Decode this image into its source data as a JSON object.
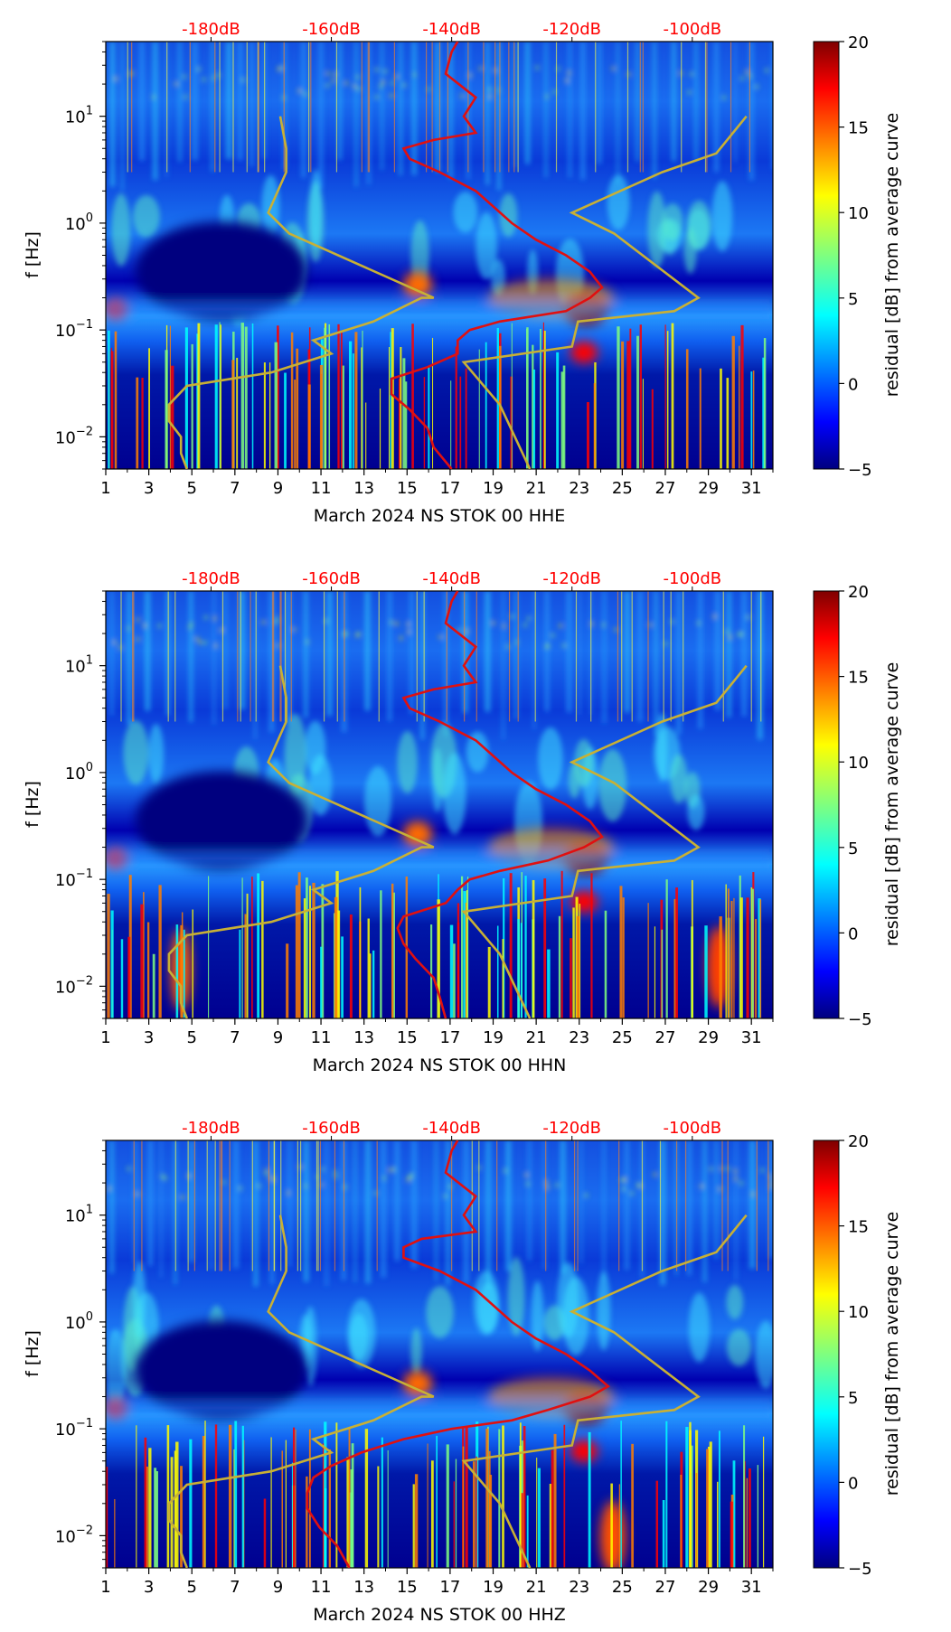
{
  "figure": {
    "colors": {
      "noise_model_line": "#c8b035",
      "average_line": "#e01010",
      "top_axis_text": "#ff0000",
      "colormap": [
        "#00007f",
        "#0000ff",
        "#007fff",
        "#00ffff",
        "#7fff7f",
        "#ffff00",
        "#ff7f00",
        "#ff0000",
        "#7f0000"
      ]
    }
  },
  "chart_data": [
    {
      "type": "heatmap",
      "title": "",
      "xlabel": "March 2024 NS STOK 00 HHE",
      "ylabel": "f [Hz]",
      "x_ticks": [
        "1",
        "3",
        "5",
        "7",
        "9",
        "11",
        "13",
        "15",
        "17",
        "19",
        "21",
        "23",
        "25",
        "27",
        "29",
        "31"
      ],
      "xlim": [
        1,
        32
      ],
      "y_ticks": [
        "10^1",
        "10^0",
        "10^-1",
        "10^-2"
      ],
      "y_tick_base": "10",
      "y_tick_exponents": [
        "1",
        "0",
        "−1",
        "−2"
      ],
      "ylim": [
        0.005,
        50
      ],
      "top_axis_labels": [
        "-180dB",
        "-160dB",
        "-140dB",
        "-120dB",
        "-100dB"
      ],
      "colorbar": {
        "label": "residual [dB] from average curve",
        "ticks": [
          "20",
          "15",
          "10",
          "5",
          "0",
          "−5"
        ],
        "range": [
          -5,
          20
        ]
      },
      "series": [
        {
          "name": "average curve (dB)",
          "color": "#e01010",
          "points": [
            [
              50,
              -139
            ],
            [
              40,
              -140
            ],
            [
              25,
              -141
            ],
            [
              15,
              -136
            ],
            [
              10,
              -138
            ],
            [
              7,
              -136
            ],
            [
              6,
              -143
            ],
            [
              5,
              -148
            ],
            [
              4,
              -147
            ],
            [
              3,
              -142
            ],
            [
              2,
              -136
            ],
            [
              1,
              -130
            ],
            [
              0.7,
              -126
            ],
            [
              0.5,
              -121
            ],
            [
              0.35,
              -117
            ],
            [
              0.25,
              -115
            ],
            [
              0.2,
              -117
            ],
            [
              0.15,
              -121
            ],
            [
              0.12,
              -132
            ],
            [
              0.1,
              -137
            ],
            [
              0.08,
              -139
            ],
            [
              0.06,
              -139
            ],
            [
              0.045,
              -144
            ],
            [
              0.035,
              -150
            ],
            [
              0.025,
              -150
            ],
            [
              0.018,
              -147
            ],
            [
              0.012,
              -144
            ],
            [
              0.008,
              -143
            ],
            [
              0.005,
              -140
            ]
          ]
        },
        {
          "name": "noise model (dB)",
          "color": "#c8b035",
          "points": [
            [
              10,
              -168.5
            ],
            [
              5,
              -167.5
            ],
            [
              3,
              -167.5
            ],
            [
              1.25,
              -170.5
            ],
            [
              0.8,
              -167
            ],
            [
              0.2,
              -143
            ],
            [
              0.2,
              -145
            ],
            [
              0.12,
              -153
            ],
            [
              0.08,
              -163
            ],
            [
              0.06,
              -160
            ],
            [
              0.04,
              -170
            ],
            [
              0.03,
              -184
            ],
            [
              0.02,
              -187
            ],
            [
              0.014,
              -187
            ],
            [
              0.01,
              -185
            ],
            [
              0.007,
              -185
            ],
            [
              0.005,
              -184
            ]
          ]
        },
        {
          "name": "noise model high (dB)",
          "color": "#c8b035",
          "points": [
            [
              10,
              -91
            ],
            [
              4.5,
              -96
            ],
            [
              3,
              -105
            ],
            [
              1.25,
              -120
            ],
            [
              0.8,
              -113
            ],
            [
              0.2,
              -99
            ],
            [
              0.15,
              -103
            ],
            [
              0.12,
              -119
            ],
            [
              0.07,
              -120
            ],
            [
              0.05,
              -138
            ],
            [
              0.02,
              -132
            ],
            [
              0.005,
              -127
            ]
          ]
        }
      ]
    },
    {
      "type": "heatmap",
      "title": "",
      "xlabel": "March 2024 NS STOK 00 HHN",
      "ylabel": "f [Hz]",
      "x_ticks": [
        "1",
        "3",
        "5",
        "7",
        "9",
        "11",
        "13",
        "15",
        "17",
        "19",
        "21",
        "23",
        "25",
        "27",
        "29",
        "31"
      ],
      "xlim": [
        1,
        32
      ],
      "y_ticks": [
        "10^1",
        "10^0",
        "10^-1",
        "10^-2"
      ],
      "y_tick_base": "10",
      "y_tick_exponents": [
        "1",
        "0",
        "−1",
        "−2"
      ],
      "ylim": [
        0.005,
        50
      ],
      "top_axis_labels": [
        "-180dB",
        "-160dB",
        "-140dB",
        "-120dB",
        "-100dB"
      ],
      "colorbar": {
        "label": "residual [dB] from average curve",
        "ticks": [
          "20",
          "15",
          "10",
          "5",
          "0",
          "−5"
        ],
        "range": [
          -5,
          20
        ]
      },
      "series": [
        {
          "name": "average curve (dB)",
          "color": "#e01010",
          "points": [
            [
              50,
              -139
            ],
            [
              40,
              -140
            ],
            [
              25,
              -141
            ],
            [
              15,
              -136
            ],
            [
              10,
              -138
            ],
            [
              7,
              -136
            ],
            [
              6,
              -143
            ],
            [
              5,
              -148
            ],
            [
              4,
              -147
            ],
            [
              3,
              -142
            ],
            [
              2,
              -136
            ],
            [
              1,
              -130
            ],
            [
              0.7,
              -126
            ],
            [
              0.5,
              -121
            ],
            [
              0.35,
              -117
            ],
            [
              0.25,
              -115
            ],
            [
              0.2,
              -118
            ],
            [
              0.15,
              -124
            ],
            [
              0.12,
              -132
            ],
            [
              0.1,
              -137
            ],
            [
              0.08,
              -139
            ],
            [
              0.06,
              -141
            ],
            [
              0.045,
              -148
            ],
            [
              0.035,
              -149
            ],
            [
              0.025,
              -148
            ],
            [
              0.018,
              -146
            ],
            [
              0.012,
              -143
            ],
            [
              0.008,
              -142
            ],
            [
              0.005,
              -141
            ]
          ]
        },
        {
          "name": "noise model (dB)",
          "color": "#c8b035",
          "points": [
            [
              10,
              -168.5
            ],
            [
              5,
              -167.5
            ],
            [
              3,
              -167.5
            ],
            [
              1.25,
              -170.5
            ],
            [
              0.8,
              -167
            ],
            [
              0.2,
              -143
            ],
            [
              0.2,
              -145
            ],
            [
              0.12,
              -153
            ],
            [
              0.08,
              -163
            ],
            [
              0.06,
              -160
            ],
            [
              0.04,
              -170
            ],
            [
              0.03,
              -184
            ],
            [
              0.02,
              -187
            ],
            [
              0.014,
              -187
            ],
            [
              0.01,
              -185
            ],
            [
              0.007,
              -185
            ],
            [
              0.005,
              -184
            ]
          ]
        },
        {
          "name": "noise model high (dB)",
          "color": "#c8b035",
          "points": [
            [
              10,
              -91
            ],
            [
              4.5,
              -96
            ],
            [
              3,
              -105
            ],
            [
              1.25,
              -120
            ],
            [
              0.8,
              -113
            ],
            [
              0.2,
              -99
            ],
            [
              0.15,
              -103
            ],
            [
              0.12,
              -119
            ],
            [
              0.07,
              -120
            ],
            [
              0.05,
              -138
            ],
            [
              0.02,
              -132
            ],
            [
              0.005,
              -127
            ]
          ]
        }
      ]
    },
    {
      "type": "heatmap",
      "title": "",
      "xlabel": "March 2024 NS STOK 00 HHZ",
      "ylabel": "f [Hz]",
      "x_ticks": [
        "1",
        "3",
        "5",
        "7",
        "9",
        "11",
        "13",
        "15",
        "17",
        "19",
        "21",
        "23",
        "25",
        "27",
        "29",
        "31"
      ],
      "xlim": [
        1,
        32
      ],
      "y_ticks": [
        "10^1",
        "10^0",
        "10^-1",
        "10^-2"
      ],
      "y_tick_base": "10",
      "y_tick_exponents": [
        "1",
        "0",
        "−1",
        "−2"
      ],
      "ylim": [
        0.005,
        50
      ],
      "top_axis_labels": [
        "-180dB",
        "-160dB",
        "-140dB",
        "-120dB",
        "-100dB"
      ],
      "colorbar": {
        "label": "residual [dB] from average curve",
        "ticks": [
          "20",
          "15",
          "10",
          "5",
          "0",
          "−5"
        ],
        "range": [
          -5,
          20
        ]
      },
      "series": [
        {
          "name": "average curve (dB)",
          "color": "#e01010",
          "points": [
            [
              50,
              -139
            ],
            [
              40,
              -140
            ],
            [
              25,
              -141
            ],
            [
              15,
              -136
            ],
            [
              10,
              -138
            ],
            [
              7,
              -136
            ],
            [
              6,
              -145
            ],
            [
              5,
              -148
            ],
            [
              4,
              -148
            ],
            [
              3,
              -142
            ],
            [
              2,
              -136
            ],
            [
              1,
              -130
            ],
            [
              0.7,
              -126
            ],
            [
              0.5,
              -121
            ],
            [
              0.35,
              -117
            ],
            [
              0.25,
              -114
            ],
            [
              0.2,
              -117
            ],
            [
              0.15,
              -124
            ],
            [
              0.12,
              -130
            ],
            [
              0.1,
              -140
            ],
            [
              0.08,
              -148
            ],
            [
              0.06,
              -155
            ],
            [
              0.045,
              -160
            ],
            [
              0.035,
              -163
            ],
            [
              0.025,
              -164
            ],
            [
              0.018,
              -164
            ],
            [
              0.012,
              -162
            ],
            [
              0.008,
              -159
            ],
            [
              0.005,
              -157
            ]
          ]
        },
        {
          "name": "noise model (dB)",
          "color": "#c8b035",
          "points": [
            [
              10,
              -168.5
            ],
            [
              5,
              -167.5
            ],
            [
              3,
              -167.5
            ],
            [
              1.25,
              -170.5
            ],
            [
              0.8,
              -167
            ],
            [
              0.2,
              -143
            ],
            [
              0.2,
              -145
            ],
            [
              0.12,
              -153
            ],
            [
              0.08,
              -163
            ],
            [
              0.06,
              -160
            ],
            [
              0.04,
              -170
            ],
            [
              0.03,
              -184
            ],
            [
              0.02,
              -187
            ],
            [
              0.014,
              -187
            ],
            [
              0.01,
              -185
            ],
            [
              0.007,
              -185
            ],
            [
              0.005,
              -184
            ]
          ]
        },
        {
          "name": "noise model high (dB)",
          "color": "#c8b035",
          "points": [
            [
              10,
              -91
            ],
            [
              4.5,
              -96
            ],
            [
              3,
              -105
            ],
            [
              1.25,
              -120
            ],
            [
              0.8,
              -113
            ],
            [
              0.2,
              -99
            ],
            [
              0.15,
              -103
            ],
            [
              0.12,
              -119
            ],
            [
              0.07,
              -120
            ],
            [
              0.05,
              -138
            ],
            [
              0.02,
              -132
            ],
            [
              0.005,
              -127
            ]
          ]
        }
      ]
    }
  ]
}
